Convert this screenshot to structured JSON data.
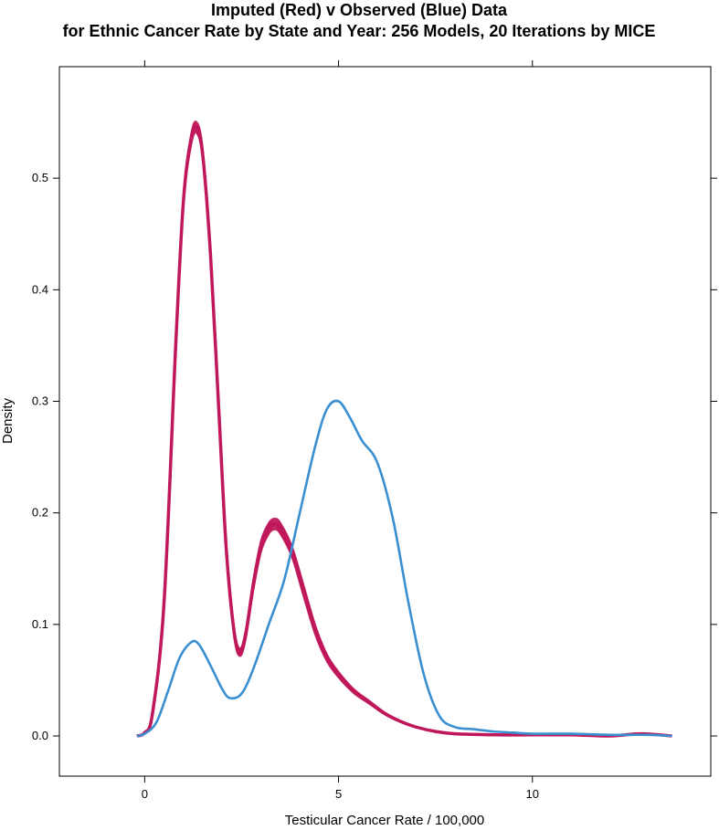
{
  "chart_data": {
    "type": "line",
    "title_line1": "Imputed (Red) v Observed (Blue) Data",
    "title_line2": "for Ethnic Cancer Rate by State and Year: 256 Models, 20 Iterations by MICE",
    "xlabel": "Testicular Cancer Rate / 100,000",
    "ylabel": "Density",
    "xlim": [
      -2.2,
      14.6
    ],
    "ylim": [
      -0.036,
      0.6
    ],
    "x_ticks": [
      "0",
      "5",
      "10"
    ],
    "y_ticks": [
      "0.0",
      "0.1",
      "0.2",
      "0.3",
      "0.4",
      "0.5"
    ],
    "grid": false,
    "colors": {
      "imputed": "#c0175a",
      "observed": "#3a8fd1"
    },
    "series": [
      {
        "key": "observed",
        "x": [
          -0.2,
          0.0,
          0.3,
          0.6,
          0.9,
          1.2,
          1.4,
          1.7,
          2.0,
          2.2,
          2.5,
          2.8,
          3.2,
          3.6,
          4.0,
          4.4,
          4.7,
          5.0,
          5.3,
          5.6,
          6.0,
          6.4,
          6.8,
          7.2,
          7.6,
          8.0,
          8.5,
          9.0,
          9.5,
          10.0,
          11.0,
          12.0,
          13.0,
          13.6
        ],
        "values": [
          0.0,
          0.002,
          0.012,
          0.04,
          0.07,
          0.084,
          0.082,
          0.063,
          0.042,
          0.034,
          0.038,
          0.06,
          0.1,
          0.14,
          0.2,
          0.26,
          0.293,
          0.3,
          0.285,
          0.265,
          0.245,
          0.195,
          0.12,
          0.055,
          0.018,
          0.008,
          0.006,
          0.004,
          0.003,
          0.002,
          0.002,
          0.001,
          0.001,
          0.0
        ]
      },
      {
        "key": "imputed",
        "x": [
          -0.2,
          0.0,
          0.2,
          0.5,
          0.8,
          1.0,
          1.2,
          1.35,
          1.5,
          1.7,
          1.9,
          2.1,
          2.3,
          2.45,
          2.6,
          2.8,
          3.0,
          3.2,
          3.35,
          3.5,
          3.8,
          4.1,
          4.4,
          4.7,
          5.0,
          5.4,
          5.8,
          6.2,
          6.6,
          7.0,
          7.5,
          8.0,
          9.0,
          10.0,
          11.0,
          12.0,
          12.8,
          13.6
        ],
        "values": [
          0.0,
          0.003,
          0.02,
          0.12,
          0.35,
          0.48,
          0.535,
          0.545,
          0.52,
          0.43,
          0.3,
          0.17,
          0.095,
          0.075,
          0.09,
          0.135,
          0.17,
          0.186,
          0.19,
          0.186,
          0.165,
          0.13,
          0.095,
          0.07,
          0.055,
          0.04,
          0.03,
          0.02,
          0.013,
          0.008,
          0.004,
          0.002,
          0.001,
          0.001,
          0.001,
          0.0,
          0.002,
          0.0
        ]
      }
    ]
  }
}
